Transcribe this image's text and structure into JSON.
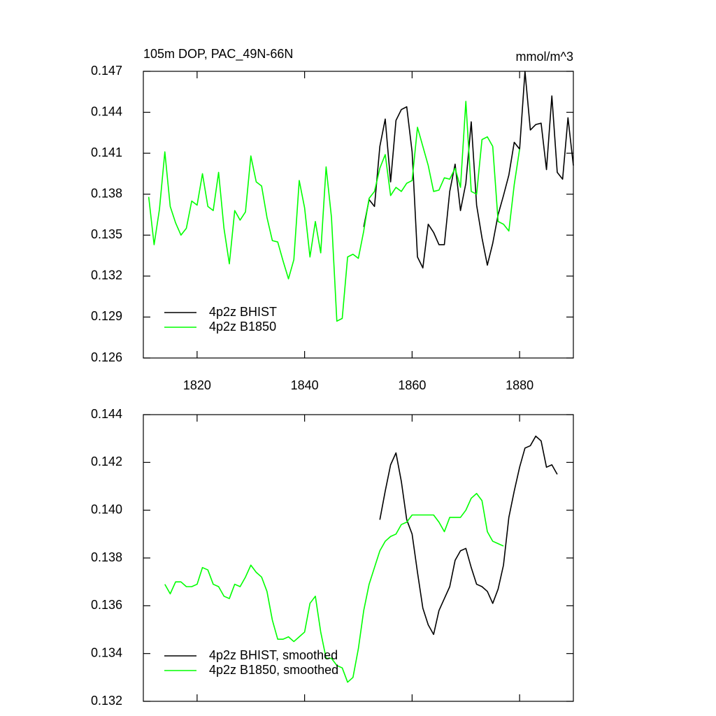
{
  "chart_data": [
    {
      "type": "line",
      "title": "105m DOP, PAC_49N-66N",
      "subtitle": "mmol/m^3",
      "x": [
        1811,
        1812,
        1813,
        1814,
        1815,
        1816,
        1817,
        1818,
        1819,
        1820,
        1821,
        1822,
        1823,
        1824,
        1825,
        1826,
        1827,
        1828,
        1829,
        1830,
        1831,
        1832,
        1833,
        1834,
        1835,
        1836,
        1837,
        1838,
        1839,
        1840,
        1841,
        1842,
        1843,
        1844,
        1845,
        1846,
        1847,
        1848,
        1849,
        1850,
        1851,
        1852,
        1853,
        1854,
        1855,
        1856,
        1857,
        1858,
        1859,
        1860,
        1861,
        1862,
        1863,
        1864,
        1865,
        1866,
        1867,
        1868,
        1869,
        1870,
        1871,
        1872,
        1873,
        1874,
        1875,
        1876,
        1877,
        1878,
        1879,
        1880,
        1881,
        1882,
        1883,
        1884,
        1885,
        1886,
        1887,
        1888,
        1889,
        1890
      ],
      "series": [
        {
          "name": "4p2z BHIST",
          "color": "#000000",
          "values": [
            null,
            null,
            null,
            null,
            null,
            null,
            null,
            null,
            null,
            null,
            null,
            null,
            null,
            null,
            null,
            null,
            null,
            null,
            null,
            null,
            null,
            null,
            null,
            null,
            null,
            null,
            null,
            null,
            null,
            null,
            null,
            null,
            null,
            null,
            null,
            null,
            null,
            null,
            null,
            null,
            0.1356,
            0.1376,
            0.1371,
            0.1415,
            0.1435,
            0.1389,
            0.1434,
            0.1442,
            0.1444,
            0.1411,
            0.1334,
            0.1326,
            0.1358,
            0.1352,
            0.1343,
            0.1343,
            0.1382,
            0.1402,
            0.1368,
            0.1388,
            0.1433,
            0.1372,
            0.1348,
            0.1328,
            0.1344,
            0.1365,
            0.1379,
            0.1394,
            0.1418,
            0.1413,
            0.147,
            0.1427,
            0.1431,
            0.1432,
            0.1398,
            0.1452,
            0.1396,
            0.1391,
            0.1436,
            0.1401
          ]
        },
        {
          "name": "4p2z B1850",
          "color": "#00ff00",
          "values": [
            0.1378,
            0.1343,
            0.1369,
            0.1411,
            0.1371,
            0.1359,
            0.135,
            0.1355,
            0.1375,
            0.1372,
            0.1395,
            0.1371,
            0.1368,
            0.1396,
            0.1355,
            0.1329,
            0.1368,
            0.1361,
            0.1367,
            0.1408,
            0.1389,
            0.1386,
            0.1363,
            0.1346,
            0.1345,
            0.1331,
            0.1318,
            0.1332,
            0.139,
            0.137,
            0.1334,
            0.136,
            0.1337,
            0.14,
            0.1363,
            0.1287,
            0.1289,
            0.1334,
            0.1336,
            0.1333,
            0.1353,
            0.1377,
            0.1382,
            0.1399,
            0.1409,
            0.1379,
            0.1385,
            0.1382,
            0.1388,
            0.139,
            0.1429,
            0.1415,
            0.1401,
            0.1382,
            0.1383,
            0.1392,
            0.1391,
            0.1399,
            0.1385,
            0.1448,
            0.1382,
            0.138,
            0.142,
            0.1422,
            0.1415,
            0.136,
            0.1358,
            0.1353,
            0.1387,
            0.1413,
            null,
            null,
            null,
            null,
            null,
            null,
            null,
            null,
            null,
            null
          ]
        }
      ],
      "xlim": [
        1810,
        1890
      ],
      "xticks": [
        1820,
        1840,
        1860,
        1880
      ],
      "ylim": [
        0.126,
        0.147
      ],
      "yticks": [
        0.126,
        0.129,
        0.132,
        0.135,
        0.138,
        0.141,
        0.144,
        0.147
      ],
      "legend": "lower left"
    },
    {
      "type": "line",
      "x": [
        1814,
        1815,
        1816,
        1817,
        1818,
        1819,
        1820,
        1821,
        1822,
        1823,
        1824,
        1825,
        1826,
        1827,
        1828,
        1829,
        1830,
        1831,
        1832,
        1833,
        1834,
        1835,
        1836,
        1837,
        1838,
        1839,
        1840,
        1841,
        1842,
        1843,
        1844,
        1845,
        1846,
        1847,
        1848,
        1849,
        1850,
        1851,
        1852,
        1853,
        1854,
        1855,
        1856,
        1857,
        1858,
        1859,
        1860,
        1861,
        1862,
        1863,
        1864,
        1865,
        1866,
        1867,
        1868,
        1869,
        1870,
        1871,
        1872,
        1873,
        1874,
        1875,
        1876,
        1877,
        1878,
        1879,
        1880,
        1881,
        1882,
        1883,
        1884,
        1885,
        1886,
        1887
      ],
      "series": [
        {
          "name": "4p2z BHIST, smoothed",
          "color": "#000000",
          "values": [
            null,
            null,
            null,
            null,
            null,
            null,
            null,
            null,
            null,
            null,
            null,
            null,
            null,
            null,
            null,
            null,
            null,
            null,
            null,
            null,
            null,
            null,
            null,
            null,
            null,
            null,
            null,
            null,
            null,
            null,
            null,
            null,
            null,
            null,
            null,
            null,
            null,
            null,
            null,
            null,
            0.1396,
            0.1408,
            0.1419,
            0.1424,
            0.1412,
            0.1396,
            0.139,
            0.1374,
            0.1359,
            0.1352,
            0.1348,
            0.1358,
            0.1363,
            0.1368,
            0.1379,
            0.1383,
            0.1384,
            0.1376,
            0.1369,
            0.1368,
            0.1366,
            0.1361,
            0.1367,
            0.1377,
            0.1397,
            0.1408,
            0.1418,
            0.1426,
            0.1427,
            0.1431,
            0.1429,
            0.1418,
            0.1419,
            0.1415
          ]
        },
        {
          "name": "4p2z B1850, smoothed",
          "color": "#00ff00",
          "values": [
            0.1369,
            0.1365,
            0.137,
            0.137,
            0.1368,
            0.1368,
            0.1369,
            0.1376,
            0.1375,
            0.1369,
            0.1368,
            0.1364,
            0.1363,
            0.1369,
            0.1368,
            0.1372,
            0.1377,
            0.1374,
            0.1372,
            0.1366,
            0.1354,
            0.1346,
            0.1346,
            0.1347,
            0.1345,
            0.1347,
            0.1349,
            0.1361,
            0.1364,
            0.1349,
            0.1338,
            0.1338,
            0.1335,
            0.1334,
            0.1328,
            0.133,
            0.1342,
            0.1358,
            0.1369,
            0.1376,
            0.1383,
            0.1387,
            0.1389,
            0.139,
            0.1394,
            0.1395,
            0.1398,
            0.1398,
            0.1398,
            0.1398,
            0.1398,
            0.1395,
            0.1391,
            0.1397,
            0.1397,
            0.1397,
            0.14,
            0.1405,
            0.1407,
            0.1404,
            0.1391,
            0.1387,
            0.1386,
            0.1385,
            null,
            null,
            null,
            null,
            null,
            null,
            null,
            null,
            null,
            null
          ]
        }
      ],
      "xlim": [
        1810,
        1890
      ],
      "ylim": [
        0.132,
        0.144
      ],
      "yticks": [
        0.132,
        0.134,
        0.136,
        0.138,
        {
          "value": 0.14,
          "label": "0.140"
        },
        0.142,
        0.144
      ],
      "legend": "lower left"
    }
  ]
}
